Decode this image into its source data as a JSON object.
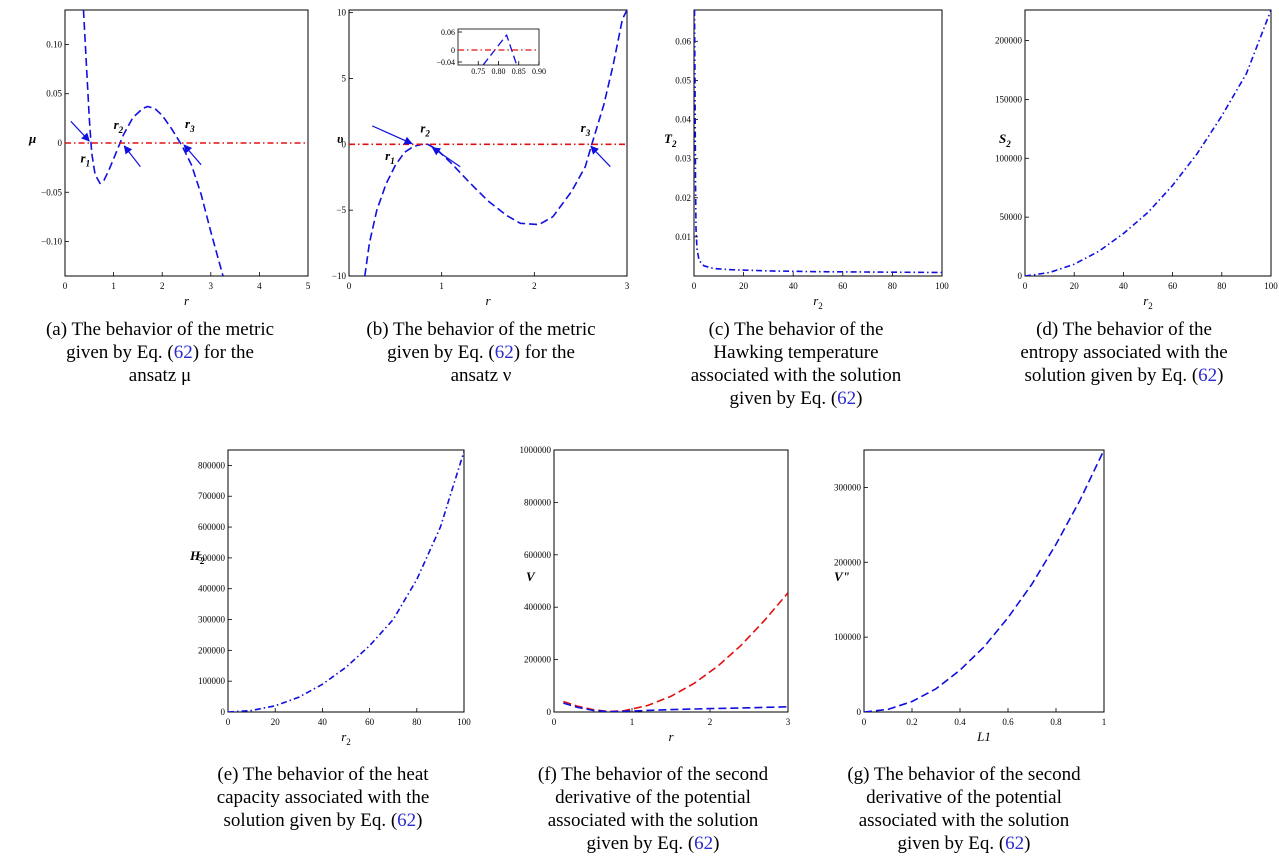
{
  "panels": [
    {
      "id": "a",
      "chart_data": {
        "type": "line",
        "xlabel": "r",
        "ylabel": "μ",
        "xlim": [
          0,
          5
        ],
        "ylim": [
          -0.135,
          0.135
        ],
        "xticks": [
          0,
          1,
          2,
          3,
          4,
          5
        ],
        "yticks": [
          -0.1,
          -0.05,
          0,
          0.05,
          0.1
        ],
        "ytick_labels": [
          "−0.10",
          "−0.05",
          "0",
          "0.05",
          "0.10"
        ],
        "series": [
          {
            "style": "dash",
            "color": "#1010e0",
            "points": [
              [
                0.38,
                0.135
              ],
              [
                0.45,
                0.07
              ],
              [
                0.5,
                0.025
              ],
              [
                0.55,
                -0.01
              ],
              [
                0.62,
                -0.032
              ],
              [
                0.72,
                -0.041
              ],
              [
                0.8,
                -0.038
              ],
              [
                0.9,
                -0.028
              ],
              [
                1.0,
                -0.016
              ],
              [
                1.2,
                0.008
              ],
              [
                1.4,
                0.026
              ],
              [
                1.6,
                0.035
              ],
              [
                1.7,
                0.037
              ],
              [
                1.85,
                0.035
              ],
              [
                2.0,
                0.028
              ],
              [
                2.2,
                0.014
              ],
              [
                2.4,
                -0.002
              ],
              [
                2.6,
                -0.022
              ],
              [
                2.8,
                -0.052
              ],
              [
                3.0,
                -0.09
              ],
              [
                3.25,
                -0.135
              ]
            ]
          },
          {
            "style": "dashdot",
            "color": "#e01010",
            "points": [
              [
                0,
                0
              ],
              [
                5,
                0
              ]
            ]
          }
        ],
        "annotations": [
          {
            "text": "r",
            "sub": "1",
            "at": [
              0.32,
              -0.02
            ]
          },
          {
            "text": "r",
            "sub": "2",
            "at": [
              1.0,
              0.014
            ]
          },
          {
            "text": "r",
            "sub": "3",
            "at": [
              2.47,
              0.015
            ]
          }
        ],
        "arrows": [
          [
            [
              0.12,
              0.022
            ],
            [
              0.5,
              0.002
            ]
          ],
          [
            [
              1.55,
              -0.024
            ],
            [
              1.22,
              -0.003
            ]
          ],
          [
            [
              2.8,
              -0.022
            ],
            [
              2.45,
              -0.002
            ]
          ]
        ]
      }
    },
    {
      "id": "b",
      "chart_data": {
        "type": "line",
        "xlabel": "r",
        "ylabel": "υ",
        "xlim": [
          0,
          3
        ],
        "ylim": [
          -10,
          10.2
        ],
        "xticks": [
          0,
          1,
          2,
          3
        ],
        "yticks": [
          -10,
          -5,
          0,
          5,
          10
        ],
        "ytick_labels": [
          "−10",
          "−5",
          "0",
          "5",
          "10"
        ],
        "series": [
          {
            "style": "dash",
            "color": "#1010e0",
            "points": [
              [
                0.17,
                -10
              ],
              [
                0.22,
                -7.5
              ],
              [
                0.3,
                -5
              ],
              [
                0.4,
                -3
              ],
              [
                0.5,
                -1.6
              ],
              [
                0.6,
                -0.6
              ],
              [
                0.7,
                -0.15
              ],
              [
                0.8,
                0.02
              ],
              [
                0.85,
                0
              ],
              [
                0.95,
                -0.4
              ],
              [
                1.1,
                -1.4
              ],
              [
                1.3,
                -2.9
              ],
              [
                1.5,
                -4.3
              ],
              [
                1.7,
                -5.4
              ],
              [
                1.85,
                -6.0
              ],
              [
                2.05,
                -6.1
              ],
              [
                2.2,
                -5.5
              ],
              [
                2.4,
                -3.6
              ],
              [
                2.55,
                -1.7
              ],
              [
                2.62,
                0
              ],
              [
                2.75,
                3
              ],
              [
                2.85,
                6
              ],
              [
                2.95,
                9.5
              ],
              [
                3.0,
                10.2
              ]
            ]
          },
          {
            "style": "dashdot",
            "color": "#e01010",
            "points": [
              [
                0,
                0
              ],
              [
                3,
                0
              ]
            ]
          }
        ],
        "annotations": [
          {
            "text": "r",
            "sub": "1",
            "at": [
              0.39,
              -1.2
            ]
          },
          {
            "text": "r",
            "sub": "2",
            "at": [
              0.77,
              0.9
            ]
          },
          {
            "text": "r",
            "sub": "3",
            "at": [
              2.5,
              0.95
            ]
          }
        ],
        "arrows": [
          [
            [
              0.25,
              1.4
            ],
            [
              0.68,
              0.05
            ]
          ],
          [
            [
              1.2,
              -1.7
            ],
            [
              0.9,
              -0.25
            ]
          ],
          [
            [
              2.82,
              -1.7
            ],
            [
              2.61,
              -0.15
            ]
          ]
        ],
        "inset": {
          "xlim": [
            0.7,
            0.9
          ],
          "ylim": [
            -0.05,
            0.07
          ],
          "xticks": [
            0.75,
            0.8,
            0.85,
            0.9
          ],
          "xtick_labels": [
            "0.75",
            "0.80",
            "0.85",
            "0.90"
          ],
          "yticks": [
            -0.04,
            0,
            0.06
          ],
          "ytick_labels": [
            "−0.04",
            "0",
            "0.06"
          ],
          "series": [
            {
              "style": "dash",
              "color": "#1010e0",
              "points": [
                [
                  0.762,
                  -0.05
                ],
                [
                  0.82,
                  0.05
                ],
                [
                  0.845,
                  -0.05
                ]
              ]
            },
            {
              "style": "dashdot",
              "color": "#e01010",
              "points": [
                [
                  0.7,
                  0
                ],
                [
                  0.9,
                  0
                ]
              ]
            }
          ]
        }
      }
    },
    {
      "id": "c",
      "chart_data": {
        "type": "line",
        "xlabel": "r",
        "xlabel_sub": "2",
        "ylabel": "T",
        "ylabel_sub": "2",
        "xlim": [
          0,
          100
        ],
        "ylim": [
          0,
          0.068
        ],
        "xticks": [
          0,
          20,
          40,
          60,
          80,
          100
        ],
        "yticks": [
          0.01,
          0.02,
          0.03,
          0.04,
          0.05,
          0.06
        ],
        "ytick_labels": [
          "0.01",
          "0.02",
          "0.03",
          "0.04",
          "0.05",
          "0.06"
        ],
        "series": [
          {
            "style": "dashdot",
            "color": "#1010e0",
            "points": [
              [
                0.2,
                0.068
              ],
              [
                0.4,
                0.05
              ],
              [
                0.6,
                0.025
              ],
              [
                0.8,
                0.012
              ],
              [
                1.2,
                0.007
              ],
              [
                2,
                0.004
              ],
              [
                4,
                0.0026
              ],
              [
                8,
                0.0019
              ],
              [
                15,
                0.0016
              ],
              [
                30,
                0.0013
              ],
              [
                50,
                0.0011
              ],
              [
                75,
                0.001
              ],
              [
                100,
                0.0009
              ]
            ]
          }
        ]
      }
    },
    {
      "id": "d",
      "chart_data": {
        "type": "line",
        "xlabel": "r",
        "xlabel_sub": "2",
        "ylabel": "S",
        "ylabel_sub": "2",
        "xlim": [
          0,
          100
        ],
        "ylim": [
          0,
          226000
        ],
        "xticks": [
          0,
          20,
          40,
          60,
          80,
          100
        ],
        "yticks": [
          0,
          50000,
          100000,
          150000,
          200000
        ],
        "ytick_labels": [
          "0",
          "50000",
          "100000",
          "150000",
          "200000"
        ],
        "series": [
          {
            "style": "dashdot",
            "color": "#1010e0",
            "points": [
              [
                0,
                0
              ],
              [
                10,
                3000
              ],
              [
                20,
                10000
              ],
              [
                30,
                21000
              ],
              [
                40,
                36000
              ],
              [
                50,
                54000
              ],
              [
                60,
                77000
              ],
              [
                70,
                104000
              ],
              [
                80,
                136000
              ],
              [
                90,
                172000
              ],
              [
                100,
                226000
              ]
            ]
          }
        ]
      }
    },
    {
      "id": "e",
      "chart_data": {
        "type": "line",
        "xlabel": "r",
        "xlabel_sub": "2",
        "ylabel": "H",
        "ylabel_sub": "2",
        "xlim": [
          0,
          100
        ],
        "ylim": [
          0,
          850000
        ],
        "xticks": [
          0,
          20,
          40,
          60,
          80,
          100
        ],
        "yticks": [
          0,
          100000,
          200000,
          300000,
          400000,
          500000,
          600000,
          700000,
          800000
        ],
        "ytick_labels": [
          "0",
          "100000",
          "200000",
          "300000",
          "400000",
          "500000",
          "600000",
          "700000",
          "800000"
        ],
        "series": [
          {
            "style": "dashdot",
            "color": "#1010e0",
            "points": [
              [
                0,
                0
              ],
              [
                10,
                5000
              ],
              [
                20,
                20000
              ],
              [
                30,
                48000
              ],
              [
                40,
                90000
              ],
              [
                50,
                145000
              ],
              [
                60,
                215000
              ],
              [
                70,
                300000
              ],
              [
                80,
                430000
              ],
              [
                90,
                600000
              ],
              [
                100,
                845000
              ]
            ]
          }
        ]
      }
    },
    {
      "id": "f",
      "chart_data": {
        "type": "line",
        "xlabel": "r",
        "ylabel": "V",
        "xlim": [
          0,
          3
        ],
        "ylim": [
          0,
          1000000
        ],
        "xticks": [
          0,
          1,
          2,
          3
        ],
        "yticks": [
          0,
          200000,
          400000,
          600000,
          800000,
          1000000
        ],
        "ytick_labels": [
          "0",
          "200000",
          "400000",
          "600000",
          "800000",
          "1000000"
        ],
        "series": [
          {
            "style": "dash",
            "color": "#e01010",
            "points": [
              [
                0.12,
                40000
              ],
              [
                0.3,
                22000
              ],
              [
                0.5,
                9000
              ],
              [
                0.7,
                2000
              ],
              [
                0.9,
                5000
              ],
              [
                1.2,
                25000
              ],
              [
                1.5,
                60000
              ],
              [
                1.8,
                110000
              ],
              [
                2.1,
                175000
              ],
              [
                2.4,
                255000
              ],
              [
                2.7,
                350000
              ],
              [
                3.0,
                455000
              ]
            ]
          },
          {
            "style": "dash",
            "color": "#1010e0",
            "points": [
              [
                0.12,
                34000
              ],
              [
                0.3,
                18000
              ],
              [
                0.5,
                6000
              ],
              [
                0.7,
                1000
              ],
              [
                1.0,
                4000
              ],
              [
                1.5,
                9000
              ],
              [
                2.0,
                13000
              ],
              [
                2.5,
                16000
              ],
              [
                3.0,
                20000
              ]
            ]
          }
        ]
      }
    },
    {
      "id": "g",
      "chart_data": {
        "type": "line",
        "xlabel": "L1",
        "ylabel": "V\"",
        "xlim": [
          0,
          1
        ],
        "ylim": [
          0,
          350000
        ],
        "xticks": [
          0,
          0.2,
          0.4,
          0.6,
          0.8,
          1
        ],
        "xtick_labels": [
          "0",
          "0.2",
          "0.4",
          "0.6",
          "0.8",
          "1"
        ],
        "yticks": [
          0,
          100000,
          200000,
          300000
        ],
        "ytick_labels": [
          "0",
          "100000",
          "200000",
          "300000"
        ],
        "series": [
          {
            "style": "dash",
            "color": "#1010e0",
            "points": [
              [
                0,
                0
              ],
              [
                0.1,
                3500
              ],
              [
                0.2,
                14000
              ],
              [
                0.3,
                31000
              ],
              [
                0.4,
                56000
              ],
              [
                0.5,
                87000
              ],
              [
                0.6,
                126000
              ],
              [
                0.7,
                171000
              ],
              [
                0.8,
                224000
              ],
              [
                0.9,
                283000
              ],
              [
                1.0,
                350000
              ]
            ]
          }
        ]
      }
    }
  ],
  "captions": {
    "a": {
      "lines": [
        "(a) The behavior of the metric",
        "given by Eq. (62) for the",
        "ansatz μ"
      ]
    },
    "b": {
      "lines": [
        "(b) The behavior of the metric",
        "given by Eq. (62) for the",
        "ansatz ν"
      ]
    },
    "c": {
      "lines": [
        "(c) The behavior of the",
        "Hawking temperature",
        "associated with the solution",
        "given by Eq. (62)"
      ]
    },
    "d": {
      "lines": [
        "(d) The behavior of the",
        "entropy associated with the",
        "solution given by Eq. (62)"
      ]
    },
    "e": {
      "lines": [
        "(e) The behavior of the heat",
        "capacity associated with the",
        "solution given by Eq. (62)"
      ]
    },
    "f": {
      "lines": [
        "(f) The behavior of the second",
        "derivative of the potential",
        "associated with the solution",
        "given by Eq. (62)"
      ]
    },
    "g": {
      "lines": [
        "(g) The behavior of the second",
        "derivative of the potential",
        "associated with the solution",
        "given by Eq. (62)"
      ]
    }
  },
  "colors": {
    "blue_curve": "#1010e0",
    "red_curve": "#e01010",
    "ref_link": "#2a2ad0"
  }
}
